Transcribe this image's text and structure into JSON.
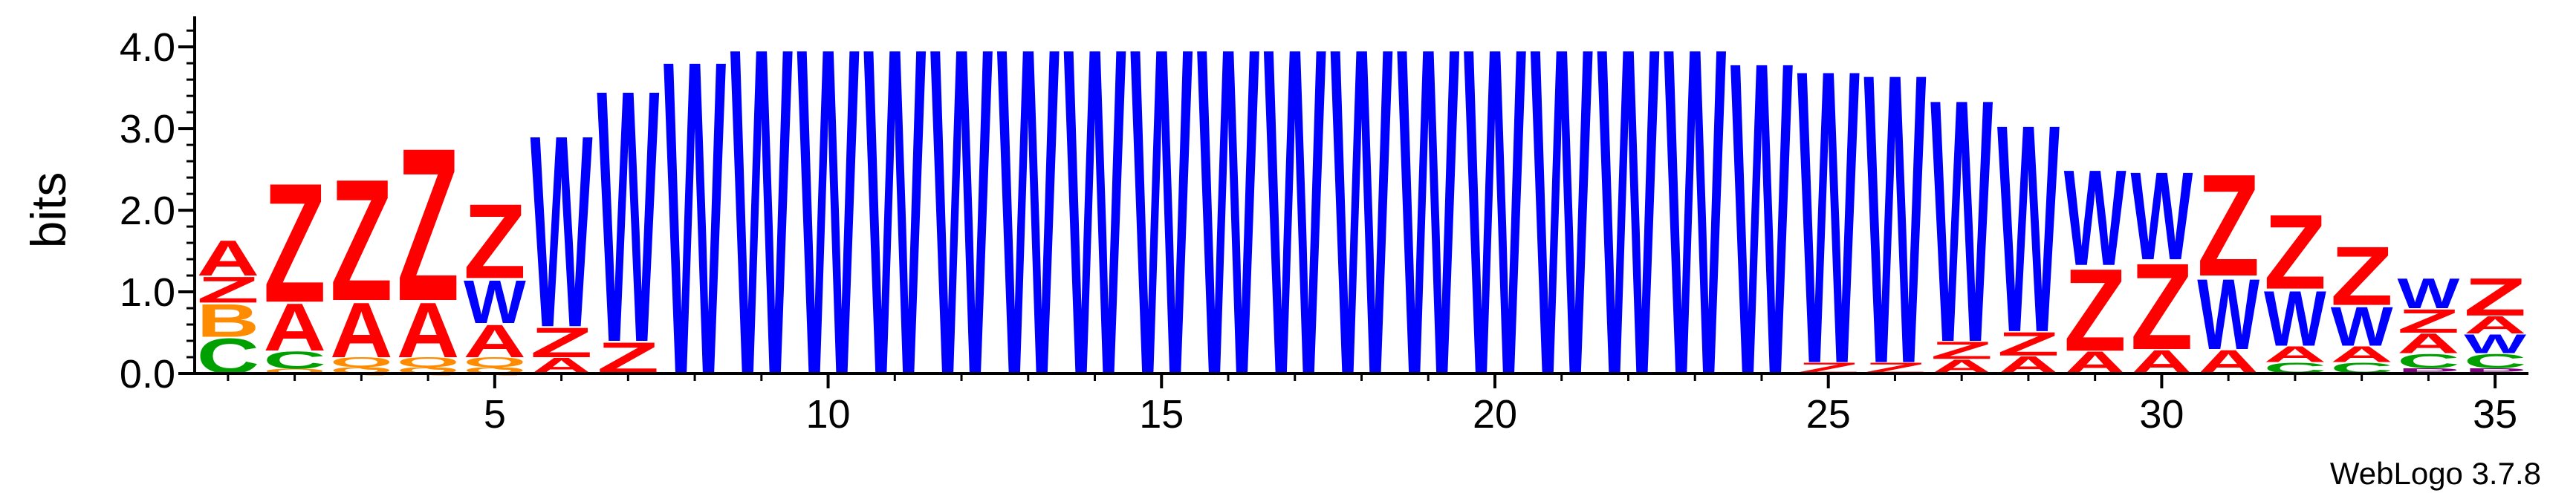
{
  "chart_data": {
    "type": "sequence-logo",
    "ylabel": "bits",
    "ylim": [
      0,
      4.32
    ],
    "yticks": [
      "0.0",
      "1.0",
      "2.0",
      "3.0",
      "4.0"
    ],
    "xticks": [
      "5",
      "10",
      "15",
      "20",
      "25",
      "30",
      "35"
    ],
    "x_range": [
      1,
      35
    ],
    "credit": "WebLogo 3.7.8",
    "letter_colors": {
      "Z": "#ff0000",
      "A": "#ff0000",
      "W": "#0000ff",
      "B": "#ff8c00",
      "C": "#00a000",
      "Q": "#ff8c00",
      "P": "#800080"
    },
    "positions": [
      {
        "pos": 1,
        "stack": [
          [
            "C",
            0.45
          ],
          [
            "B",
            0.42
          ],
          [
            "Z",
            0.33
          ],
          [
            "A",
            0.45
          ]
        ]
      },
      {
        "pos": 2,
        "stack": [
          [
            "Q",
            0.06
          ],
          [
            "C",
            0.22
          ],
          [
            "A",
            0.6
          ],
          [
            "Z",
            1.52
          ]
        ]
      },
      {
        "pos": 3,
        "stack": [
          [
            "Q",
            0.08
          ],
          [
            "Q",
            0.12
          ],
          [
            "A",
            0.7
          ],
          [
            "Z",
            1.55
          ]
        ]
      },
      {
        "pos": 4,
        "stack": [
          [
            "Q",
            0.08
          ],
          [
            "Q",
            0.12
          ],
          [
            "A",
            0.7
          ],
          [
            "Z",
            1.95
          ]
        ]
      },
      {
        "pos": 5,
        "stack": [
          [
            "Q",
            0.08
          ],
          [
            "Q",
            0.12
          ],
          [
            "A",
            0.42
          ],
          [
            "W",
            0.55
          ],
          [
            "Z",
            0.95
          ]
        ]
      },
      {
        "pos": 6,
        "stack": [
          [
            "A",
            0.2
          ],
          [
            "Z",
            0.38
          ],
          [
            "W",
            2.45
          ]
        ]
      },
      {
        "pos": 7,
        "stack": [
          [
            "Z",
            0.4
          ],
          [
            "W",
            3.22
          ]
        ]
      },
      {
        "pos": 8,
        "stack": [
          [
            "W",
            4.02
          ]
        ]
      },
      {
        "pos": 9,
        "stack": [
          [
            "W",
            4.18
          ]
        ]
      },
      {
        "pos": 10,
        "stack": [
          [
            "W",
            4.18
          ]
        ]
      },
      {
        "pos": 11,
        "stack": [
          [
            "W",
            4.18
          ]
        ]
      },
      {
        "pos": 12,
        "stack": [
          [
            "W",
            4.18
          ]
        ]
      },
      {
        "pos": 13,
        "stack": [
          [
            "W",
            4.18
          ]
        ]
      },
      {
        "pos": 14,
        "stack": [
          [
            "W",
            4.18
          ]
        ]
      },
      {
        "pos": 15,
        "stack": [
          [
            "W",
            4.18
          ]
        ]
      },
      {
        "pos": 16,
        "stack": [
          [
            "W",
            4.18
          ]
        ]
      },
      {
        "pos": 17,
        "stack": [
          [
            "W",
            4.18
          ]
        ]
      },
      {
        "pos": 18,
        "stack": [
          [
            "W",
            4.18
          ]
        ]
      },
      {
        "pos": 19,
        "stack": [
          [
            "W",
            4.18
          ]
        ]
      },
      {
        "pos": 20,
        "stack": [
          [
            "W",
            4.18
          ]
        ]
      },
      {
        "pos": 21,
        "stack": [
          [
            "W",
            4.18
          ]
        ]
      },
      {
        "pos": 22,
        "stack": [
          [
            "W",
            4.18
          ]
        ]
      },
      {
        "pos": 23,
        "stack": [
          [
            "W",
            4.18
          ]
        ]
      },
      {
        "pos": 24,
        "stack": [
          [
            "W",
            4.0
          ]
        ]
      },
      {
        "pos": 25,
        "stack": [
          [
            "Z",
            0.14
          ],
          [
            "W",
            3.75
          ]
        ]
      },
      {
        "pos": 26,
        "stack": [
          [
            "Z",
            0.14
          ],
          [
            "W",
            3.7
          ]
        ]
      },
      {
        "pos": 27,
        "stack": [
          [
            "A",
            0.18
          ],
          [
            "Z",
            0.22
          ],
          [
            "W",
            3.1
          ]
        ]
      },
      {
        "pos": 28,
        "stack": [
          [
            "A",
            0.22
          ],
          [
            "Z",
            0.3
          ],
          [
            "W",
            2.65
          ]
        ]
      },
      {
        "pos": 29,
        "stack": [
          [
            "A",
            0.28
          ],
          [
            "Z",
            1.05
          ],
          [
            "W",
            1.22
          ]
        ]
      },
      {
        "pos": 30,
        "stack": [
          [
            "A",
            0.3
          ],
          [
            "Z",
            1.1
          ],
          [
            "W",
            1.12
          ]
        ]
      },
      {
        "pos": 31,
        "stack": [
          [
            "A",
            0.3
          ],
          [
            "W",
            0.9
          ],
          [
            "Z",
            1.3
          ]
        ]
      },
      {
        "pos": 32,
        "stack": [
          [
            "C",
            0.14
          ],
          [
            "A",
            0.2
          ],
          [
            "W",
            0.7
          ],
          [
            "Z",
            0.95
          ]
        ]
      },
      {
        "pos": 33,
        "stack": [
          [
            "C",
            0.14
          ],
          [
            "A",
            0.2
          ],
          [
            "W",
            0.5
          ],
          [
            "Z",
            0.75
          ]
        ]
      },
      {
        "pos": 34,
        "stack": [
          [
            "P",
            0.07
          ],
          [
            "C",
            0.18
          ],
          [
            "A",
            0.25
          ],
          [
            "Z",
            0.3
          ],
          [
            "W",
            0.38
          ]
        ]
      },
      {
        "pos": 35,
        "stack": [
          [
            "P",
            0.07
          ],
          [
            "C",
            0.18
          ],
          [
            "W",
            0.24
          ],
          [
            "A",
            0.22
          ],
          [
            "Z",
            0.48
          ]
        ]
      }
    ]
  }
}
